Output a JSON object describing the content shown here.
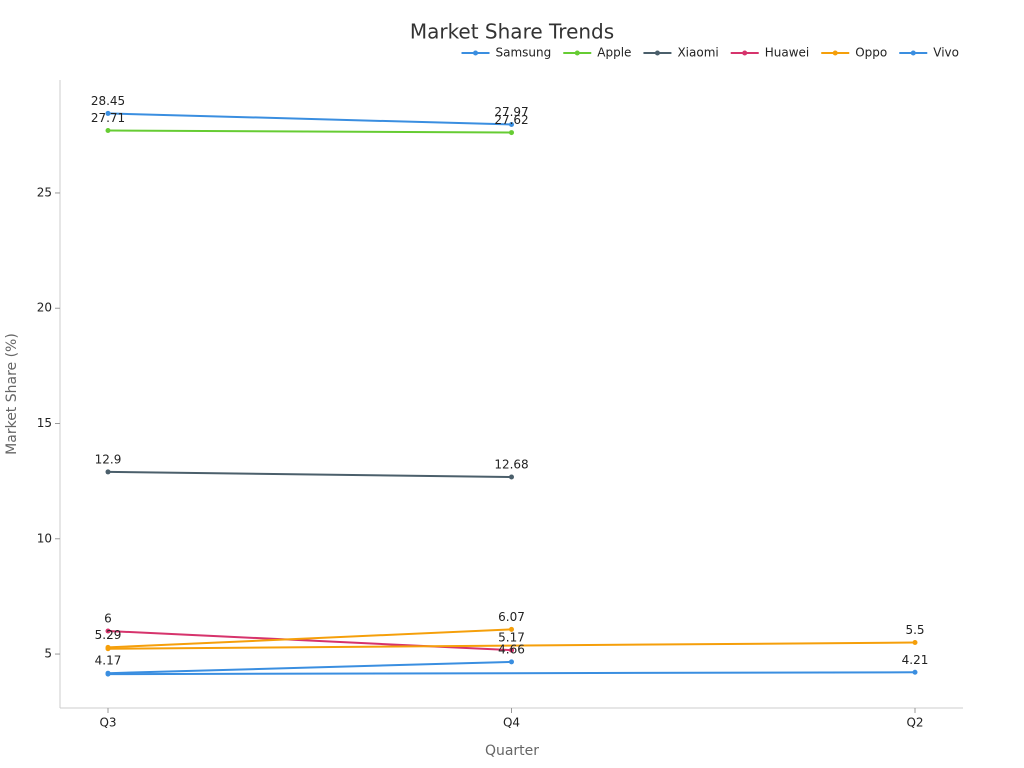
{
  "chart_data": {
    "type": "line",
    "title": "Market Share Trends",
    "x_label": "Quarter",
    "y_label": "Market Share (%)",
    "categories": [
      "Q3",
      "Q4",
      "Q2"
    ],
    "ylim": [
      2.66,
      29.9
    ],
    "yticks": [
      5,
      10,
      15,
      20,
      25
    ],
    "legend": "top-right",
    "series": [
      {
        "name": "Samsung",
        "color": "#3a8ee0",
        "x": [
          "Q3",
          "Q4"
        ],
        "values": [
          28.45,
          27.97
        ]
      },
      {
        "name": "Apple",
        "color": "#66cc33",
        "x": [
          "Q3",
          "Q4"
        ],
        "values": [
          27.71,
          27.62
        ]
      },
      {
        "name": "Xiaomi",
        "color": "#4b5f6b",
        "x": [
          "Q3",
          "Q4"
        ],
        "values": [
          12.9,
          12.68
        ]
      },
      {
        "name": "Huawei",
        "color": "#d6336c",
        "x": [
          "Q3",
          "Q4"
        ],
        "values": [
          6,
          5.17
        ]
      },
      {
        "name": "Oppo",
        "color": "#f59f0a",
        "x": [
          "Q3",
          "Q4",
          null,
          "Q3",
          "Q2"
        ],
        "values": [
          5.29,
          6.07,
          null,
          5.23,
          5.5
        ],
        "value_labels": [
          "5.29",
          "6.07",
          null,
          null,
          "5.5"
        ]
      },
      {
        "name": "Vivo",
        "color": "#3a8ee0",
        "x": [
          "Q3",
          "Q4",
          null,
          "Q3",
          "Q2"
        ],
        "values": [
          4.17,
          4.66,
          null,
          4.13,
          4.21
        ],
        "value_labels": [
          "4.17",
          "4.66",
          null,
          null,
          "4.21"
        ]
      }
    ]
  }
}
